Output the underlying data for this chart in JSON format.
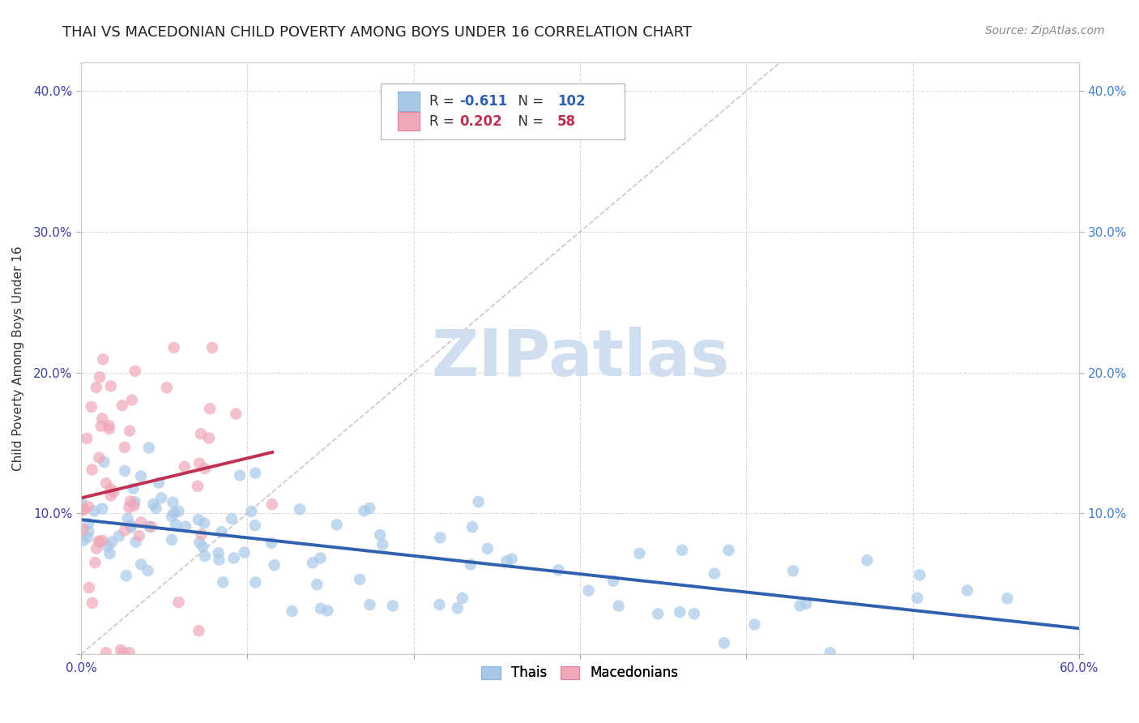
{
  "title": "THAI VS MACEDONIAN CHILD POVERTY AMONG BOYS UNDER 16 CORRELATION CHART",
  "source": "Source: ZipAtlas.com",
  "ylabel": "Child Poverty Among Boys Under 16",
  "xlim": [
    0.0,
    0.6
  ],
  "ylim": [
    0.0,
    0.42
  ],
  "xticks": [
    0.0,
    0.1,
    0.2,
    0.3,
    0.4,
    0.5,
    0.6
  ],
  "yticks": [
    0.0,
    0.1,
    0.2,
    0.3,
    0.4
  ],
  "xticklabels": [
    "0.0%",
    "",
    "",
    "",
    "",
    "",
    "60.0%"
  ],
  "yticklabels": [
    "",
    "10.0%",
    "20.0%",
    "30.0%",
    "40.0%"
  ],
  "right_yticklabels": [
    "",
    "10.0%",
    "20.0%",
    "30.0%",
    "40.0%"
  ],
  "thai_R": -0.611,
  "thai_N": 102,
  "mac_R": 0.202,
  "mac_N": 58,
  "thai_color": "#a8c8e8",
  "mac_color": "#f0a8b8",
  "thai_line_color": "#3060b0",
  "mac_line_color": "#c03050",
  "diag_color": "#c8c8c8",
  "watermark_color": "#d0dff0",
  "grid_color": "#d8d8d8",
  "title_fontsize": 13,
  "source_fontsize": 10,
  "axis_tick_color": "#4040a0",
  "right_tick_color": "#4080d0"
}
